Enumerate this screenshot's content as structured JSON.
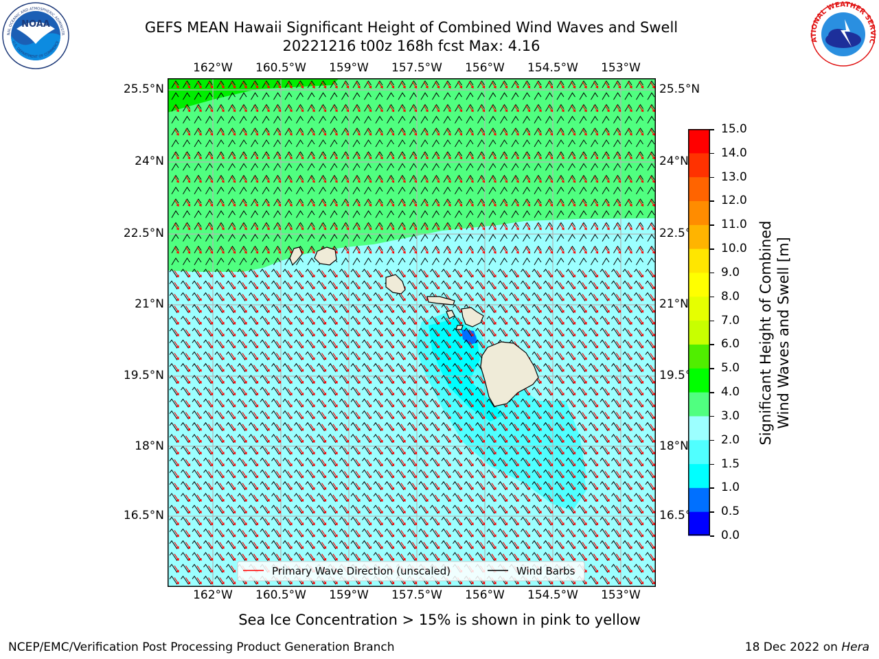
{
  "title": {
    "line1": "GEFS MEAN Hawaii Significant Height of Combined Wind Waves and Swell",
    "line2": "20221216 t00z 168h fcst   Max: 4.16"
  },
  "logos": {
    "noaa": {
      "text": "NOAA",
      "ring_top": "NATIONAL OCEANIC AND ATMOSPHERIC ADMINISTRATION",
      "ring_bottom": "U.S. DEPARTMENT OF COMMERCE"
    },
    "nws": {
      "ring_text": "NATIONAL WEATHER SERVICE"
    }
  },
  "map": {
    "lon_ticks": [
      "162°W",
      "160.5°W",
      "159°W",
      "157.5°W",
      "156°W",
      "154.5°W",
      "153°W"
    ],
    "lat_ticks": [
      "25.5°N",
      "24°N",
      "22.5°N",
      "21°N",
      "19.5°N",
      "18°N",
      "16.5°N"
    ],
    "legend": {
      "wave_label": "Primary Wave Direction (unscaled)",
      "barb_label": "Wind Barbs"
    },
    "colors": {
      "wave_arrow": "#ff0000",
      "wind_barb": "#000000",
      "land": "#efebd8"
    }
  },
  "colorbar": {
    "label_line1": "Significant Height of Combined",
    "label_line2": "Wind Waves and Swell [m]",
    "ticks": [
      "0.0",
      "0.5",
      "1.0",
      "1.5",
      "2.0",
      "3.0",
      "4.0",
      "5.0",
      "6.0",
      "7.0",
      "8.0",
      "9.0",
      "10.0",
      "11.0",
      "12.0",
      "13.0",
      "14.0",
      "15.0"
    ],
    "colors": [
      "#0000ff",
      "#0070ff",
      "#00ffff",
      "#50ffff",
      "#9cffff",
      "#50ff80",
      "#00ff00",
      "#50ee00",
      "#c8ff00",
      "#e6ff00",
      "#ffff00",
      "#ffe600",
      "#ffb400",
      "#ff8c00",
      "#ff6400",
      "#ff3200",
      "#ff0000"
    ]
  },
  "note": "Sea Ice Concentration > 15% is shown in pink to yellow",
  "footer": {
    "left": "NCEP/EMC/Verification Post Processing Product Generation Branch",
    "right_prefix": "18 Dec 2022 on ",
    "right_host": "Hera"
  }
}
